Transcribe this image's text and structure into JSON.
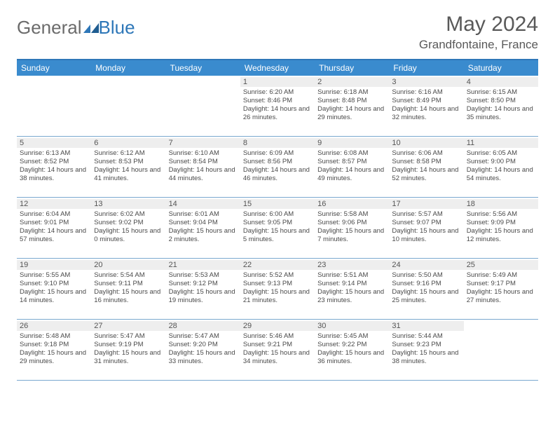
{
  "logo": {
    "part1": "General",
    "part2": "Blue"
  },
  "title": "May 2024",
  "location": "Grandfontaine, France",
  "colors": {
    "header_bg": "#3a8bce",
    "border": "#7aa8cf",
    "daynum_bg": "#eeeeee",
    "text": "#595959",
    "logo_gray": "#6b6b6b",
    "logo_blue": "#2e77b8"
  },
  "weekdays": [
    "Sunday",
    "Monday",
    "Tuesday",
    "Wednesday",
    "Thursday",
    "Friday",
    "Saturday"
  ],
  "weeks": [
    [
      null,
      null,
      null,
      {
        "n": "1",
        "sunrise": "6:20 AM",
        "sunset": "8:46 PM",
        "dl": "14 hours and 26 minutes."
      },
      {
        "n": "2",
        "sunrise": "6:18 AM",
        "sunset": "8:48 PM",
        "dl": "14 hours and 29 minutes."
      },
      {
        "n": "3",
        "sunrise": "6:16 AM",
        "sunset": "8:49 PM",
        "dl": "14 hours and 32 minutes."
      },
      {
        "n": "4",
        "sunrise": "6:15 AM",
        "sunset": "8:50 PM",
        "dl": "14 hours and 35 minutes."
      }
    ],
    [
      {
        "n": "5",
        "sunrise": "6:13 AM",
        "sunset": "8:52 PM",
        "dl": "14 hours and 38 minutes."
      },
      {
        "n": "6",
        "sunrise": "6:12 AM",
        "sunset": "8:53 PM",
        "dl": "14 hours and 41 minutes."
      },
      {
        "n": "7",
        "sunrise": "6:10 AM",
        "sunset": "8:54 PM",
        "dl": "14 hours and 44 minutes."
      },
      {
        "n": "8",
        "sunrise": "6:09 AM",
        "sunset": "8:56 PM",
        "dl": "14 hours and 46 minutes."
      },
      {
        "n": "9",
        "sunrise": "6:08 AM",
        "sunset": "8:57 PM",
        "dl": "14 hours and 49 minutes."
      },
      {
        "n": "10",
        "sunrise": "6:06 AM",
        "sunset": "8:58 PM",
        "dl": "14 hours and 52 minutes."
      },
      {
        "n": "11",
        "sunrise": "6:05 AM",
        "sunset": "9:00 PM",
        "dl": "14 hours and 54 minutes."
      }
    ],
    [
      {
        "n": "12",
        "sunrise": "6:04 AM",
        "sunset": "9:01 PM",
        "dl": "14 hours and 57 minutes."
      },
      {
        "n": "13",
        "sunrise": "6:02 AM",
        "sunset": "9:02 PM",
        "dl": "15 hours and 0 minutes."
      },
      {
        "n": "14",
        "sunrise": "6:01 AM",
        "sunset": "9:04 PM",
        "dl": "15 hours and 2 minutes."
      },
      {
        "n": "15",
        "sunrise": "6:00 AM",
        "sunset": "9:05 PM",
        "dl": "15 hours and 5 minutes."
      },
      {
        "n": "16",
        "sunrise": "5:58 AM",
        "sunset": "9:06 PM",
        "dl": "15 hours and 7 minutes."
      },
      {
        "n": "17",
        "sunrise": "5:57 AM",
        "sunset": "9:07 PM",
        "dl": "15 hours and 10 minutes."
      },
      {
        "n": "18",
        "sunrise": "5:56 AM",
        "sunset": "9:09 PM",
        "dl": "15 hours and 12 minutes."
      }
    ],
    [
      {
        "n": "19",
        "sunrise": "5:55 AM",
        "sunset": "9:10 PM",
        "dl": "15 hours and 14 minutes."
      },
      {
        "n": "20",
        "sunrise": "5:54 AM",
        "sunset": "9:11 PM",
        "dl": "15 hours and 16 minutes."
      },
      {
        "n": "21",
        "sunrise": "5:53 AM",
        "sunset": "9:12 PM",
        "dl": "15 hours and 19 minutes."
      },
      {
        "n": "22",
        "sunrise": "5:52 AM",
        "sunset": "9:13 PM",
        "dl": "15 hours and 21 minutes."
      },
      {
        "n": "23",
        "sunrise": "5:51 AM",
        "sunset": "9:14 PM",
        "dl": "15 hours and 23 minutes."
      },
      {
        "n": "24",
        "sunrise": "5:50 AM",
        "sunset": "9:16 PM",
        "dl": "15 hours and 25 minutes."
      },
      {
        "n": "25",
        "sunrise": "5:49 AM",
        "sunset": "9:17 PM",
        "dl": "15 hours and 27 minutes."
      }
    ],
    [
      {
        "n": "26",
        "sunrise": "5:48 AM",
        "sunset": "9:18 PM",
        "dl": "15 hours and 29 minutes."
      },
      {
        "n": "27",
        "sunrise": "5:47 AM",
        "sunset": "9:19 PM",
        "dl": "15 hours and 31 minutes."
      },
      {
        "n": "28",
        "sunrise": "5:47 AM",
        "sunset": "9:20 PM",
        "dl": "15 hours and 33 minutes."
      },
      {
        "n": "29",
        "sunrise": "5:46 AM",
        "sunset": "9:21 PM",
        "dl": "15 hours and 34 minutes."
      },
      {
        "n": "30",
        "sunrise": "5:45 AM",
        "sunset": "9:22 PM",
        "dl": "15 hours and 36 minutes."
      },
      {
        "n": "31",
        "sunrise": "5:44 AM",
        "sunset": "9:23 PM",
        "dl": "15 hours and 38 minutes."
      },
      null
    ]
  ]
}
